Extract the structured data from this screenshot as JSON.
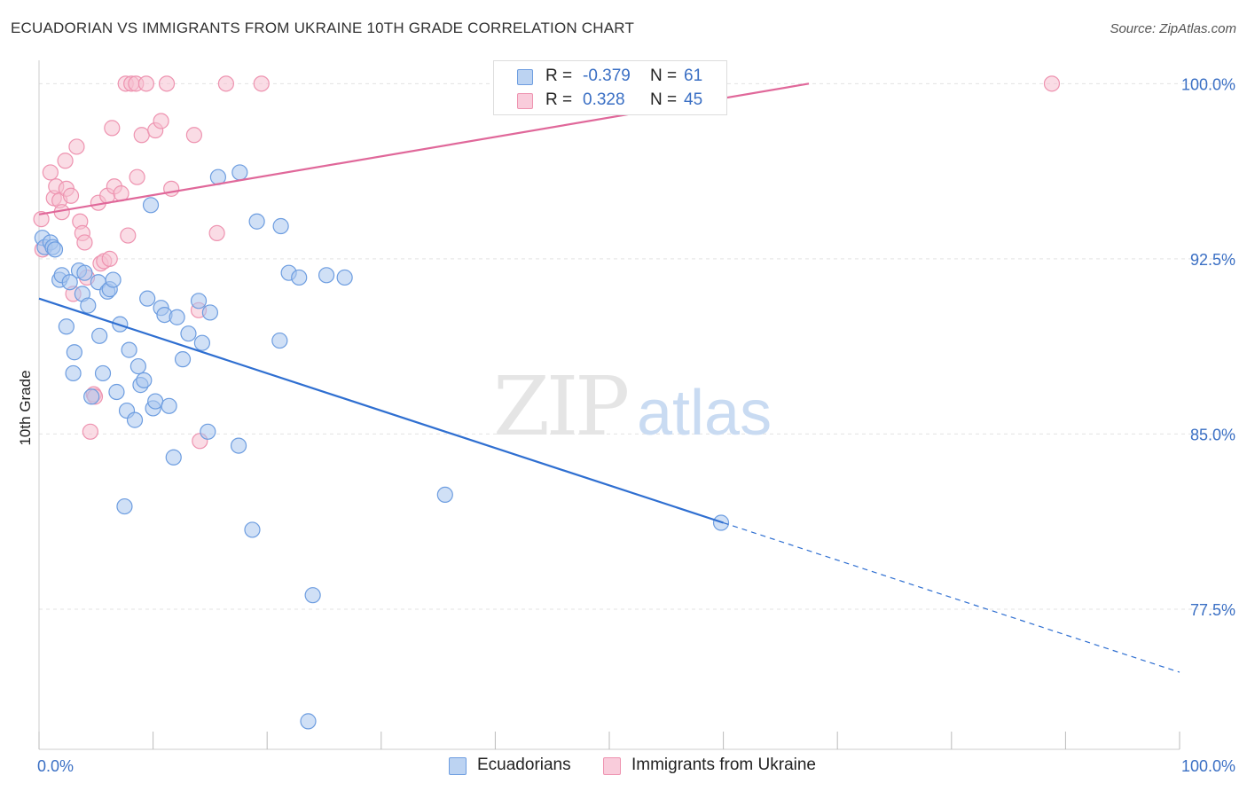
{
  "header": {
    "title": "ECUADORIAN VS IMMIGRANTS FROM UKRAINE 10TH GRADE CORRELATION CHART",
    "source": "Source: ZipAtlas.com"
  },
  "watermark": {
    "zip": "ZIP",
    "atlas": "atlas"
  },
  "legend": {
    "rows": [
      {
        "r_label": "R =",
        "r_value": "-0.379",
        "n_label": "N =",
        "n_value": "61"
      },
      {
        "r_label": "R =",
        "r_value": "0.328",
        "n_label": "N =",
        "n_value": "45"
      }
    ]
  },
  "bottom_legend": [
    "Ecuadorians",
    "Immigrants from Ukraine"
  ],
  "colors": {
    "blue_fill": "#a9c6ee",
    "blue_stroke": "#6d9de0",
    "blue_line": "#2f6fd1",
    "pink_fill": "#f6bfd0",
    "pink_stroke": "#ee93b0",
    "pink_line": "#e0689a",
    "tick_label": "#3a6fc4",
    "grid": "#e3e3e3"
  },
  "chart_data": {
    "type": "scatter",
    "title": "ECUADORIAN VS IMMIGRANTS FROM UKRAINE 10TH GRADE CORRELATION CHART",
    "xlabel": "",
    "ylabel": "10th Grade",
    "xlim": [
      0,
      100
    ],
    "ylim": [
      71.5,
      101
    ],
    "x_tick_labels": [
      "0.0%",
      "100.0%"
    ],
    "y_ticks": [
      77.5,
      85.0,
      92.5,
      100.0
    ],
    "y_tick_labels": [
      "77.5%",
      "85.0%",
      "92.5%",
      "100.0%"
    ],
    "series": [
      {
        "name": "Ecuadorians",
        "R": -0.379,
        "N": 61,
        "trend": {
          "x0": 0,
          "y0": 90.8,
          "x1": 60,
          "y1": 81.2,
          "dash_to_x": 100,
          "dash_to_y": 74.8
        },
        "points": [
          [
            0.3,
            93.4
          ],
          [
            0.5,
            93.0
          ],
          [
            1.0,
            93.2
          ],
          [
            1.2,
            93.0
          ],
          [
            1.4,
            92.9
          ],
          [
            1.8,
            91.6
          ],
          [
            2.0,
            91.8
          ],
          [
            2.4,
            89.6
          ],
          [
            2.7,
            91.5
          ],
          [
            3.0,
            87.6
          ],
          [
            3.1,
            88.5
          ],
          [
            3.5,
            92.0
          ],
          [
            3.8,
            91.0
          ],
          [
            4.0,
            91.9
          ],
          [
            4.3,
            90.5
          ],
          [
            4.6,
            86.6
          ],
          [
            5.2,
            91.5
          ],
          [
            5.3,
            89.2
          ],
          [
            5.6,
            87.6
          ],
          [
            6.0,
            91.1
          ],
          [
            6.2,
            91.2
          ],
          [
            6.5,
            91.6
          ],
          [
            6.8,
            86.8
          ],
          [
            7.1,
            89.7
          ],
          [
            7.5,
            81.9
          ],
          [
            7.7,
            86.0
          ],
          [
            7.9,
            88.6
          ],
          [
            8.4,
            85.6
          ],
          [
            8.7,
            87.9
          ],
          [
            8.9,
            87.1
          ],
          [
            9.2,
            87.3
          ],
          [
            9.5,
            90.8
          ],
          [
            9.8,
            94.8
          ],
          [
            10.0,
            86.1
          ],
          [
            10.2,
            86.4
          ],
          [
            10.7,
            90.4
          ],
          [
            11.0,
            90.1
          ],
          [
            11.4,
            86.2
          ],
          [
            11.8,
            84.0
          ],
          [
            12.1,
            90.0
          ],
          [
            12.6,
            88.2
          ],
          [
            13.1,
            89.3
          ],
          [
            14.0,
            90.7
          ],
          [
            14.3,
            88.9
          ],
          [
            14.8,
            85.1
          ],
          [
            15.0,
            90.2
          ],
          [
            15.7,
            96.0
          ],
          [
            17.5,
            84.5
          ],
          [
            17.6,
            96.2
          ],
          [
            18.7,
            80.9
          ],
          [
            19.1,
            94.1
          ],
          [
            21.1,
            89.0
          ],
          [
            21.2,
            93.9
          ],
          [
            21.9,
            91.9
          ],
          [
            22.8,
            91.7
          ],
          [
            23.6,
            72.7
          ],
          [
            24.0,
            78.1
          ],
          [
            25.2,
            91.8
          ],
          [
            26.8,
            91.7
          ],
          [
            35.6,
            82.4
          ],
          [
            59.8,
            81.2
          ]
        ]
      },
      {
        "name": "Immigrants from Ukraine",
        "R": 0.328,
        "N": 45,
        "trend": {
          "x0": 0,
          "y0": 94.4,
          "x1": 67.5,
          "y1": 100.0
        },
        "points": [
          [
            0.2,
            94.2
          ],
          [
            0.3,
            92.9
          ],
          [
            1.0,
            96.2
          ],
          [
            1.3,
            95.1
          ],
          [
            1.5,
            95.6
          ],
          [
            1.8,
            95.0
          ],
          [
            2.0,
            94.5
          ],
          [
            2.3,
            96.7
          ],
          [
            2.4,
            95.5
          ],
          [
            2.8,
            95.2
          ],
          [
            3.0,
            91.0
          ],
          [
            3.3,
            97.3
          ],
          [
            3.6,
            94.1
          ],
          [
            3.8,
            93.6
          ],
          [
            4.0,
            93.2
          ],
          [
            4.2,
            91.7
          ],
          [
            4.5,
            85.1
          ],
          [
            4.8,
            86.7
          ],
          [
            4.9,
            86.6
          ],
          [
            5.2,
            94.9
          ],
          [
            5.4,
            92.3
          ],
          [
            5.7,
            92.4
          ],
          [
            6.0,
            95.2
          ],
          [
            6.2,
            92.5
          ],
          [
            6.4,
            98.1
          ],
          [
            6.6,
            95.6
          ],
          [
            7.2,
            95.3
          ],
          [
            7.6,
            100.0
          ],
          [
            7.8,
            93.5
          ],
          [
            8.1,
            100.0
          ],
          [
            8.5,
            100.0
          ],
          [
            8.6,
            96.0
          ],
          [
            9.0,
            97.8
          ],
          [
            9.4,
            100.0
          ],
          [
            10.2,
            98.0
          ],
          [
            10.7,
            98.4
          ],
          [
            11.2,
            100.0
          ],
          [
            11.6,
            95.5
          ],
          [
            13.6,
            97.8
          ],
          [
            14.0,
            90.3
          ],
          [
            14.1,
            84.7
          ],
          [
            15.6,
            93.6
          ],
          [
            16.4,
            100.0
          ],
          [
            19.5,
            100.0
          ],
          [
            88.8,
            100.0
          ]
        ]
      }
    ]
  }
}
